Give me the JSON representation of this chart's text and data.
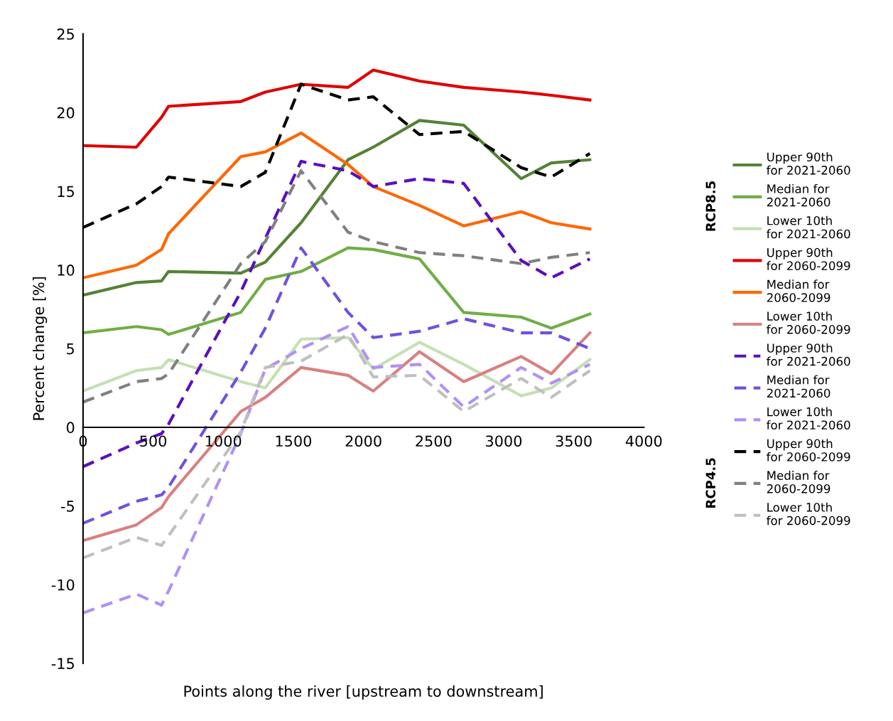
{
  "chart_data": {
    "type": "line",
    "xlabel": "Points along the river [upstream to downstream]",
    "ylabel": "Percent change [%]",
    "x": [
      0,
      380,
      560,
      610,
      1125,
      1300,
      1555,
      1890,
      2070,
      2400,
      2715,
      3125,
      3340,
      3615
    ],
    "xlim": [
      0,
      4000
    ],
    "xticks": [
      0,
      500,
      1000,
      1500,
      2000,
      2500,
      3000,
      3500,
      4000
    ],
    "ylim": [
      -15,
      25
    ],
    "yticks": [
      -15,
      -10,
      -5,
      0,
      5,
      10,
      15,
      20,
      25
    ],
    "grid": false,
    "legend": "right",
    "marker": "none",
    "annotations": [
      "RCP8.5",
      "RCP4.5"
    ],
    "series": [
      {
        "name": "Upper 90th\nfor 2021-2060",
        "color": "#548235",
        "line_style": "solid",
        "values": [
          8.4,
          9.2,
          9.3,
          9.9,
          9.8,
          10.5,
          13.0,
          17.0,
          17.8,
          19.5,
          19.2,
          15.8,
          16.8,
          17.0
        ]
      },
      {
        "name": "Median for\n2021-2060",
        "color": "#70ad47",
        "line_style": "solid",
        "values": [
          6.0,
          6.4,
          6.2,
          5.9,
          7.3,
          9.4,
          9.9,
          11.4,
          11.3,
          10.7,
          7.3,
          7.0,
          6.3,
          7.2
        ]
      },
      {
        "name": "Lower 10th\nfor 2021-2060",
        "color": "#c5e0b4",
        "line_style": "solid",
        "values": [
          2.3,
          3.6,
          3.8,
          4.3,
          2.9,
          2.5,
          5.6,
          5.7,
          3.7,
          5.4,
          4.0,
          2.0,
          2.5,
          4.3
        ]
      },
      {
        "name": "Upper 90th\nfor 2060-2099",
        "color": "#e00000",
        "line_style": "solid",
        "values": [
          17.9,
          17.8,
          19.7,
          20.4,
          20.7,
          21.3,
          21.8,
          21.6,
          22.7,
          22.0,
          21.6,
          21.3,
          21.1,
          20.8
        ]
      },
      {
        "name": "Median for\n2060-2099",
        "color": "#ff6600",
        "line_style": "solid",
        "values": [
          9.5,
          10.3,
          11.3,
          12.3,
          17.2,
          17.5,
          18.7,
          16.7,
          15.3,
          14.1,
          12.8,
          13.7,
          13.0,
          12.6
        ]
      },
      {
        "name": "Lower 10th\nfor 2060-2099",
        "color": "#d98080",
        "line_style": "solid",
        "values": [
          -7.2,
          -6.2,
          -5.1,
          -4.4,
          1.0,
          1.9,
          3.8,
          3.3,
          2.3,
          4.8,
          2.9,
          4.5,
          3.4,
          6.0
        ]
      },
      {
        "name": "Upper 90th\nfor 2021-2060",
        "color": "#5b0fbe",
        "line_style": "dashed",
        "values": [
          -2.5,
          -1.0,
          -0.4,
          0.2,
          8.6,
          12.0,
          16.9,
          16.3,
          15.3,
          15.8,
          15.5,
          10.6,
          9.5,
          10.7
        ]
      },
      {
        "name": "Median for\n2021-2060",
        "color": "#7050e0",
        "line_style": "dashed",
        "values": [
          -6.1,
          -4.7,
          -4.3,
          -3.8,
          3.5,
          6.3,
          11.4,
          7.3,
          5.7,
          6.1,
          6.9,
          6.0,
          6.0,
          5.0
        ]
      },
      {
        "name": "Lower 10th\nfor 2021-2060",
        "color": "#b090f8",
        "line_style": "dashed",
        "values": [
          -11.8,
          -10.6,
          -11.3,
          -10.4,
          -0.4,
          3.7,
          5.0,
          6.4,
          3.8,
          4.0,
          1.3,
          3.8,
          2.8,
          4.0
        ]
      },
      {
        "name": "Upper 90th\nfor 2060-2099",
        "color": "#000000",
        "line_style": "dashed",
        "values": [
          12.7,
          14.2,
          15.3,
          15.9,
          15.3,
          16.2,
          21.8,
          20.8,
          21.0,
          18.6,
          18.8,
          16.5,
          15.9,
          17.4
        ]
      },
      {
        "name": "Median for\n2060-2099",
        "color": "#808080",
        "line_style": "dashed",
        "values": [
          1.6,
          2.9,
          3.1,
          3.4,
          10.4,
          11.8,
          16.3,
          12.4,
          11.8,
          11.1,
          10.9,
          10.4,
          10.8,
          11.1
        ]
      },
      {
        "name": "Lower 10th\nfor 2060-2099",
        "color": "#bfbfbf",
        "line_style": "dashed",
        "values": [
          -8.3,
          -7.0,
          -7.5,
          -6.9,
          -0.3,
          3.8,
          4.2,
          5.9,
          3.2,
          3.3,
          1.0,
          3.1,
          1.9,
          3.6
        ]
      }
    ]
  }
}
